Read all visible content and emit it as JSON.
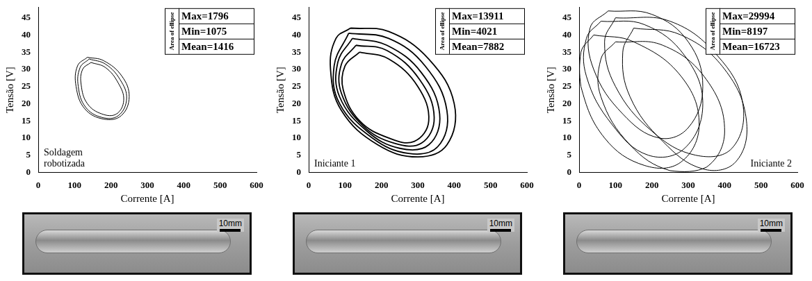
{
  "chart_data": [
    {
      "type": "scatter",
      "marker": "none",
      "line_style": "solid",
      "color": "#000000",
      "grid": false,
      "x_label": "Corrente [A]",
      "y_label": "Tensão [V]",
      "xlim": [
        0,
        600
      ],
      "xticks": [
        0,
        100,
        200,
        300,
        400,
        500,
        600
      ],
      "ylim": [
        0,
        48
      ],
      "yticks": [
        0,
        5,
        10,
        15,
        20,
        25,
        30,
        35,
        40,
        45
      ],
      "annotation": "Soldagem robotizada",
      "table": {
        "title": "Area of ellipse",
        "rows": [
          "Max=1796",
          "Min=1075",
          "Mean=1416"
        ]
      },
      "series": [
        {
          "x": [
            140,
            185,
            225,
            243,
            220,
            175,
            130,
            110,
            115,
            140
          ],
          "y": [
            33,
            31.5,
            27,
            21.5,
            16.5,
            16,
            19,
            25,
            30.5,
            33
          ]
        },
        {
          "x": [
            145,
            185,
            220,
            235,
            215,
            175,
            135,
            118,
            122,
            145
          ],
          "y": [
            32,
            30.5,
            26,
            21,
            17,
            17,
            20,
            25.5,
            30,
            32
          ]
        },
        {
          "x": [
            135,
            180,
            230,
            250,
            228,
            180,
            128,
            104,
            108,
            135
          ],
          "y": [
            33.5,
            32.5,
            28,
            22,
            16.5,
            15.5,
            18.5,
            25,
            31,
            33.5
          ]
        }
      ]
    },
    {
      "type": "scatter",
      "marker": "none",
      "line_style": "solid",
      "color": "#000000",
      "grid": false,
      "x_label": "Corrente [A]",
      "y_label": "Tensão [V]",
      "xlim": [
        0,
        600
      ],
      "xticks": [
        0,
        100,
        200,
        300,
        400,
        500,
        600
      ],
      "ylim": [
        0,
        48
      ],
      "yticks": [
        0,
        5,
        10,
        15,
        20,
        25,
        30,
        35,
        40,
        45
      ],
      "annotation": "Iniciante 1",
      "table": {
        "title": "Area of ellipse",
        "rows": [
          "Max=13911",
          "Min=4021",
          "Mean=7882"
        ]
      },
      "series": [
        {
          "x": [
            115,
            220,
            330,
            400,
            380,
            300,
            190,
            90,
            60,
            75,
            115
          ],
          "y": [
            42,
            41,
            33,
            20,
            8,
            4.5,
            8,
            18,
            30,
            39,
            42
          ]
        },
        {
          "x": [
            140,
            220,
            300,
            330,
            290,
            220,
            140,
            95,
            100,
            140
          ],
          "y": [
            35,
            33,
            25,
            15,
            9,
            10,
            15,
            24,
            31,
            35
          ]
        },
        {
          "x": [
            120,
            215,
            310,
            360,
            330,
            250,
            160,
            85,
            80,
            120
          ],
          "y": [
            39,
            37,
            29,
            17,
            8,
            7,
            12,
            22,
            32,
            39
          ]
        },
        {
          "x": [
            130,
            215,
            305,
            345,
            310,
            235,
            150,
            90,
            90,
            130
          ],
          "y": [
            37,
            35.5,
            27,
            16,
            8.5,
            8.5,
            13.5,
            23,
            31.5,
            37
          ]
        },
        {
          "x": [
            110,
            220,
            320,
            380,
            355,
            275,
            175,
            85,
            70,
            110
          ],
          "y": [
            40.5,
            39,
            31,
            18,
            7.5,
            5.5,
            10,
            20,
            31,
            40.5
          ]
        }
      ]
    },
    {
      "type": "scatter",
      "marker": "none",
      "line_style": "solid",
      "color": "#000000",
      "grid": false,
      "x_label": "Corrente [A]",
      "y_label": "Tensão [V]",
      "xlim": [
        0,
        600
      ],
      "xticks": [
        0,
        100,
        200,
        300,
        400,
        500,
        600
      ],
      "ylim": [
        0,
        48
      ],
      "yticks": [
        0,
        5,
        10,
        15,
        20,
        25,
        30,
        35,
        40,
        45
      ],
      "annotation": "Iniciante 2",
      "table": {
        "title": "Area of ellipse",
        "rows": [
          "Max=29994",
          "Min=8197",
          "Mean=16723"
        ]
      },
      "series": [
        {
          "x": [
            80,
            200,
            300,
            340,
            300,
            220,
            120,
            40,
            30,
            80
          ],
          "y": [
            47,
            46,
            38,
            25,
            13,
            10,
            17,
            30,
            42,
            47
          ]
        },
        {
          "x": [
            100,
            250,
            380,
            450,
            420,
            320,
            200,
            100,
            70,
            100
          ],
          "y": [
            45,
            44,
            34,
            20,
            7,
            5,
            12,
            25,
            38,
            45
          ]
        },
        {
          "x": [
            40,
            150,
            280,
            330,
            280,
            180,
            70,
            5,
            5,
            40
          ],
          "y": [
            40,
            38,
            28,
            14,
            3,
            2,
            10,
            25,
            35,
            40
          ]
        },
        {
          "x": [
            100,
            230,
            350,
            400,
            350,
            250,
            140,
            60,
            60,
            100
          ],
          "y": [
            38,
            37,
            27,
            12,
            1.5,
            0.5,
            8,
            22,
            33,
            38
          ]
        },
        {
          "x": [
            60,
            180,
            290,
            340,
            290,
            190,
            90,
            20,
            20,
            60
          ],
          "y": [
            44,
            43,
            34,
            20,
            7,
            5,
            14,
            28,
            39,
            44
          ]
        },
        {
          "x": [
            150,
            280,
            400,
            460,
            430,
            340,
            230,
            140,
            120,
            150
          ],
          "y": [
            42,
            40,
            30,
            15,
            3,
            1,
            9,
            22,
            35,
            42
          ]
        }
      ]
    }
  ],
  "photos": [
    {
      "scale_label": "10mm"
    },
    {
      "scale_label": "10mm"
    },
    {
      "scale_label": "10mm"
    }
  ]
}
